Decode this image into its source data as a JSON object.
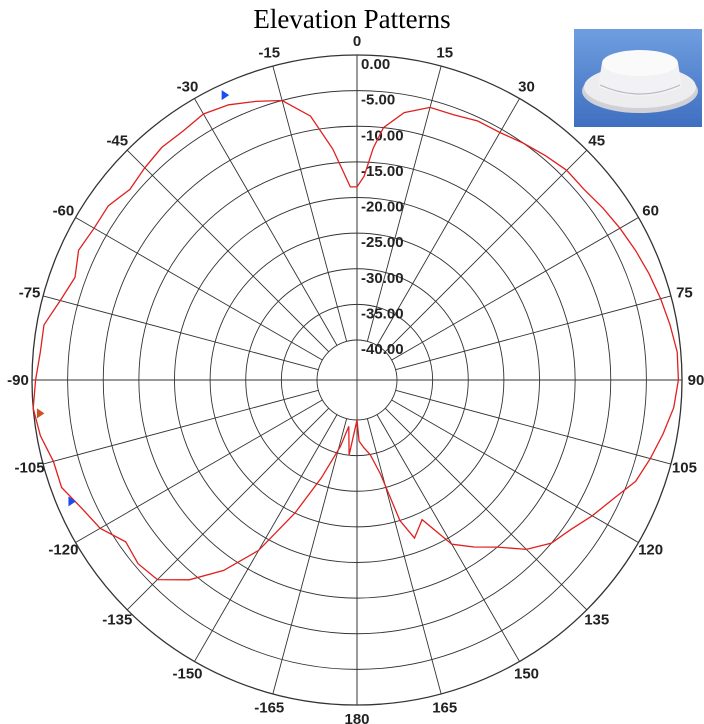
{
  "chart_data": {
    "type": "polar-line",
    "title": "Elevation Patterns",
    "radial_axis": {
      "range": [
        -40,
        0
      ],
      "unit": "dB",
      "rings": [
        0,
        -5,
        -10,
        -15,
        -20,
        -25,
        -30,
        -35,
        -40
      ],
      "ring_labels": [
        "0.00",
        "-5.00",
        "-10.00",
        "-15.00",
        "-20.00",
        "-25.00",
        "-30.00",
        "-35.00",
        "-40.00"
      ]
    },
    "angular_axis": {
      "direction": "clockwise",
      "zero_at": "top",
      "step_deg": 15,
      "tick_labels": [
        {
          "angle": 0,
          "label": "0"
        },
        {
          "angle": 15,
          "label": "15"
        },
        {
          "angle": 30,
          "label": "30"
        },
        {
          "angle": 45,
          "label": "45"
        },
        {
          "angle": 60,
          "label": "60"
        },
        {
          "angle": 75,
          "label": "75"
        },
        {
          "angle": 90,
          "label": "90"
        },
        {
          "angle": 105,
          "label": "105"
        },
        {
          "angle": 120,
          "label": "120"
        },
        {
          "angle": 135,
          "label": "135"
        },
        {
          "angle": 150,
          "label": "150"
        },
        {
          "angle": 165,
          "label": "165"
        },
        {
          "angle": 180,
          "label": "180"
        },
        {
          "angle": -165,
          "label": "-165"
        },
        {
          "angle": -150,
          "label": "-150"
        },
        {
          "angle": -135,
          "label": "-135"
        },
        {
          "angle": -120,
          "label": "-120"
        },
        {
          "angle": -105,
          "label": "-105"
        },
        {
          "angle": -90,
          "label": "-90"
        },
        {
          "angle": -75,
          "label": "-75"
        },
        {
          "angle": -60,
          "label": "-60"
        },
        {
          "angle": -45,
          "label": "-45"
        },
        {
          "angle": -30,
          "label": "-30"
        },
        {
          "angle": -15,
          "label": "-15"
        }
      ]
    },
    "series": [
      {
        "color": "#e02020",
        "points": [
          [
            -180,
            -40
          ],
          [
            -174,
            -35
          ],
          [
            -170,
            -39
          ],
          [
            -166,
            -36
          ],
          [
            -160,
            -31
          ],
          [
            -155,
            -25
          ],
          [
            -150,
            -18
          ],
          [
            -145,
            -13
          ],
          [
            -140,
            -9
          ],
          [
            -135,
            -6
          ],
          [
            -130,
            -5.5
          ],
          [
            -125,
            -6
          ],
          [
            -120,
            -4
          ],
          [
            -115,
            -3
          ],
          [
            -110,
            -1.5
          ],
          [
            -105,
            -1.5
          ],
          [
            -100,
            -0.5
          ],
          [
            -95,
            0
          ],
          [
            -90,
            -0.5
          ],
          [
            -85,
            -1
          ],
          [
            -80,
            -1
          ],
          [
            -75,
            -2.5
          ],
          [
            -70,
            -3.5
          ],
          [
            -65,
            -2.5
          ],
          [
            -60,
            -3
          ],
          [
            -55,
            -3
          ],
          [
            -50,
            -4
          ],
          [
            -45,
            -3.5
          ],
          [
            -40,
            -3
          ],
          [
            -35,
            -3
          ],
          [
            -30,
            -2.5
          ],
          [
            -25,
            -3
          ],
          [
            -20,
            -4
          ],
          [
            -15,
            -5
          ],
          [
            -10,
            -8
          ],
          [
            -6,
            -13
          ],
          [
            -4,
            -16
          ],
          [
            -2,
            -18.5
          ],
          [
            0,
            -18.5
          ],
          [
            2,
            -17
          ],
          [
            4,
            -13
          ],
          [
            6,
            -10
          ],
          [
            10,
            -7.5
          ],
          [
            15,
            -6
          ],
          [
            20,
            -6
          ],
          [
            25,
            -5.5
          ],
          [
            30,
            -5.5
          ],
          [
            35,
            -5
          ],
          [
            40,
            -4.5
          ],
          [
            45,
            -4
          ],
          [
            50,
            -4
          ],
          [
            55,
            -3.5
          ],
          [
            60,
            -3
          ],
          [
            65,
            -2.5
          ],
          [
            70,
            -2
          ],
          [
            75,
            -1.5
          ],
          [
            80,
            -1
          ],
          [
            85,
            -0.5
          ],
          [
            90,
            -0.5
          ],
          [
            95,
            -1
          ],
          [
            100,
            -2
          ],
          [
            105,
            -3
          ],
          [
            110,
            -4
          ],
          [
            115,
            -6
          ],
          [
            120,
            -7.5
          ],
          [
            125,
            -9
          ],
          [
            130,
            -10
          ],
          [
            135,
            -12
          ],
          [
            140,
            -15
          ],
          [
            145,
            -17
          ],
          [
            150,
            -19
          ],
          [
            155,
            -24
          ],
          [
            160,
            -22
          ],
          [
            163,
            -25
          ],
          [
            166,
            -32
          ],
          [
            170,
            -35
          ],
          [
            174,
            -36
          ],
          [
            178,
            -37
          ],
          [
            180,
            -40
          ]
        ]
      }
    ],
    "markers": [
      {
        "angle": -25,
        "level": -1.5,
        "shape": "triangle",
        "color": "#1a4cf0"
      },
      {
        "angle": -113,
        "level": -2,
        "shape": "triangle",
        "color": "#1a4cf0"
      },
      {
        "angle": -96,
        "level": -0.8,
        "shape": "triangle",
        "color": "#d05020"
      }
    ],
    "grid": true,
    "legend": "none"
  },
  "photo": {
    "label": "product-photo",
    "bg_color": "#5a88d0",
    "object_color": "#e6e6e8"
  }
}
